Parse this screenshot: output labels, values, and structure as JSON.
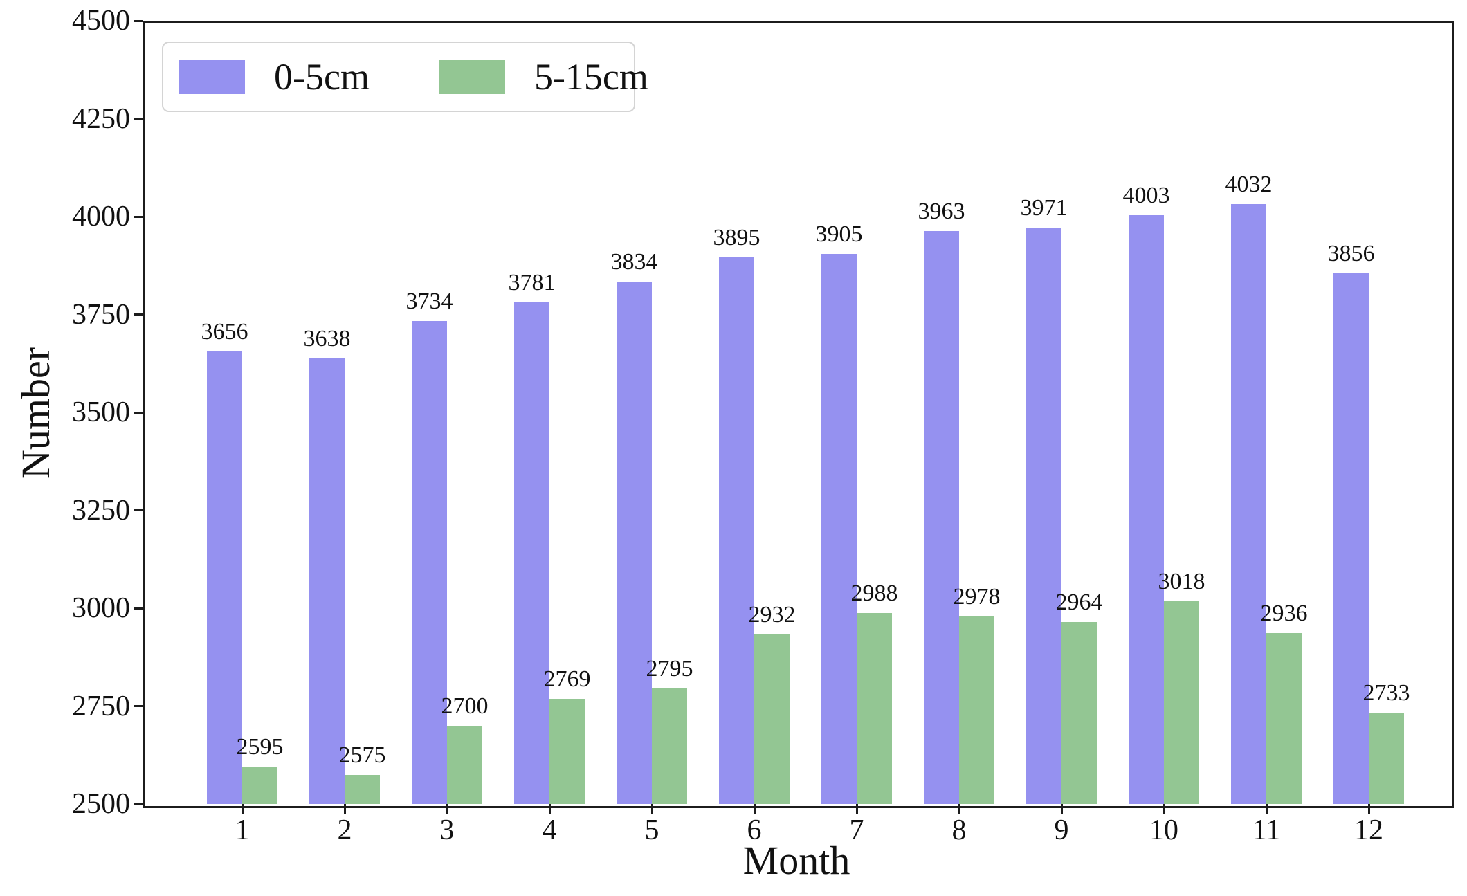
{
  "figure": {
    "background": "#ffffff",
    "text_color": "#111111",
    "spine_color": "#1c1c1c"
  },
  "chart_data": {
    "type": "bar",
    "title": "",
    "xlabel": "Month",
    "ylabel": "Number",
    "categories": [
      "1",
      "2",
      "3",
      "4",
      "5",
      "6",
      "7",
      "8",
      "9",
      "10",
      "11",
      "12"
    ],
    "series": [
      {
        "name": "0-5cm",
        "color": "#9591f0",
        "values": [
          3656,
          3638,
          3734,
          3781,
          3834,
          3895,
          3905,
          3963,
          3971,
          4003,
          4032,
          3856
        ]
      },
      {
        "name": "5-15cm",
        "color": "#93c693",
        "values": [
          2595,
          2575,
          2700,
          2769,
          2795,
          2932,
          2988,
          2978,
          2964,
          3018,
          2936,
          2733
        ]
      }
    ],
    "ylim": [
      2500,
      4500
    ],
    "ytick_step": 250,
    "yticks": [
      2500,
      2750,
      3000,
      3250,
      3500,
      3750,
      4000,
      4250,
      4500
    ],
    "grid": false,
    "legend_position": "upper-left",
    "bar_value_labels": true
  }
}
